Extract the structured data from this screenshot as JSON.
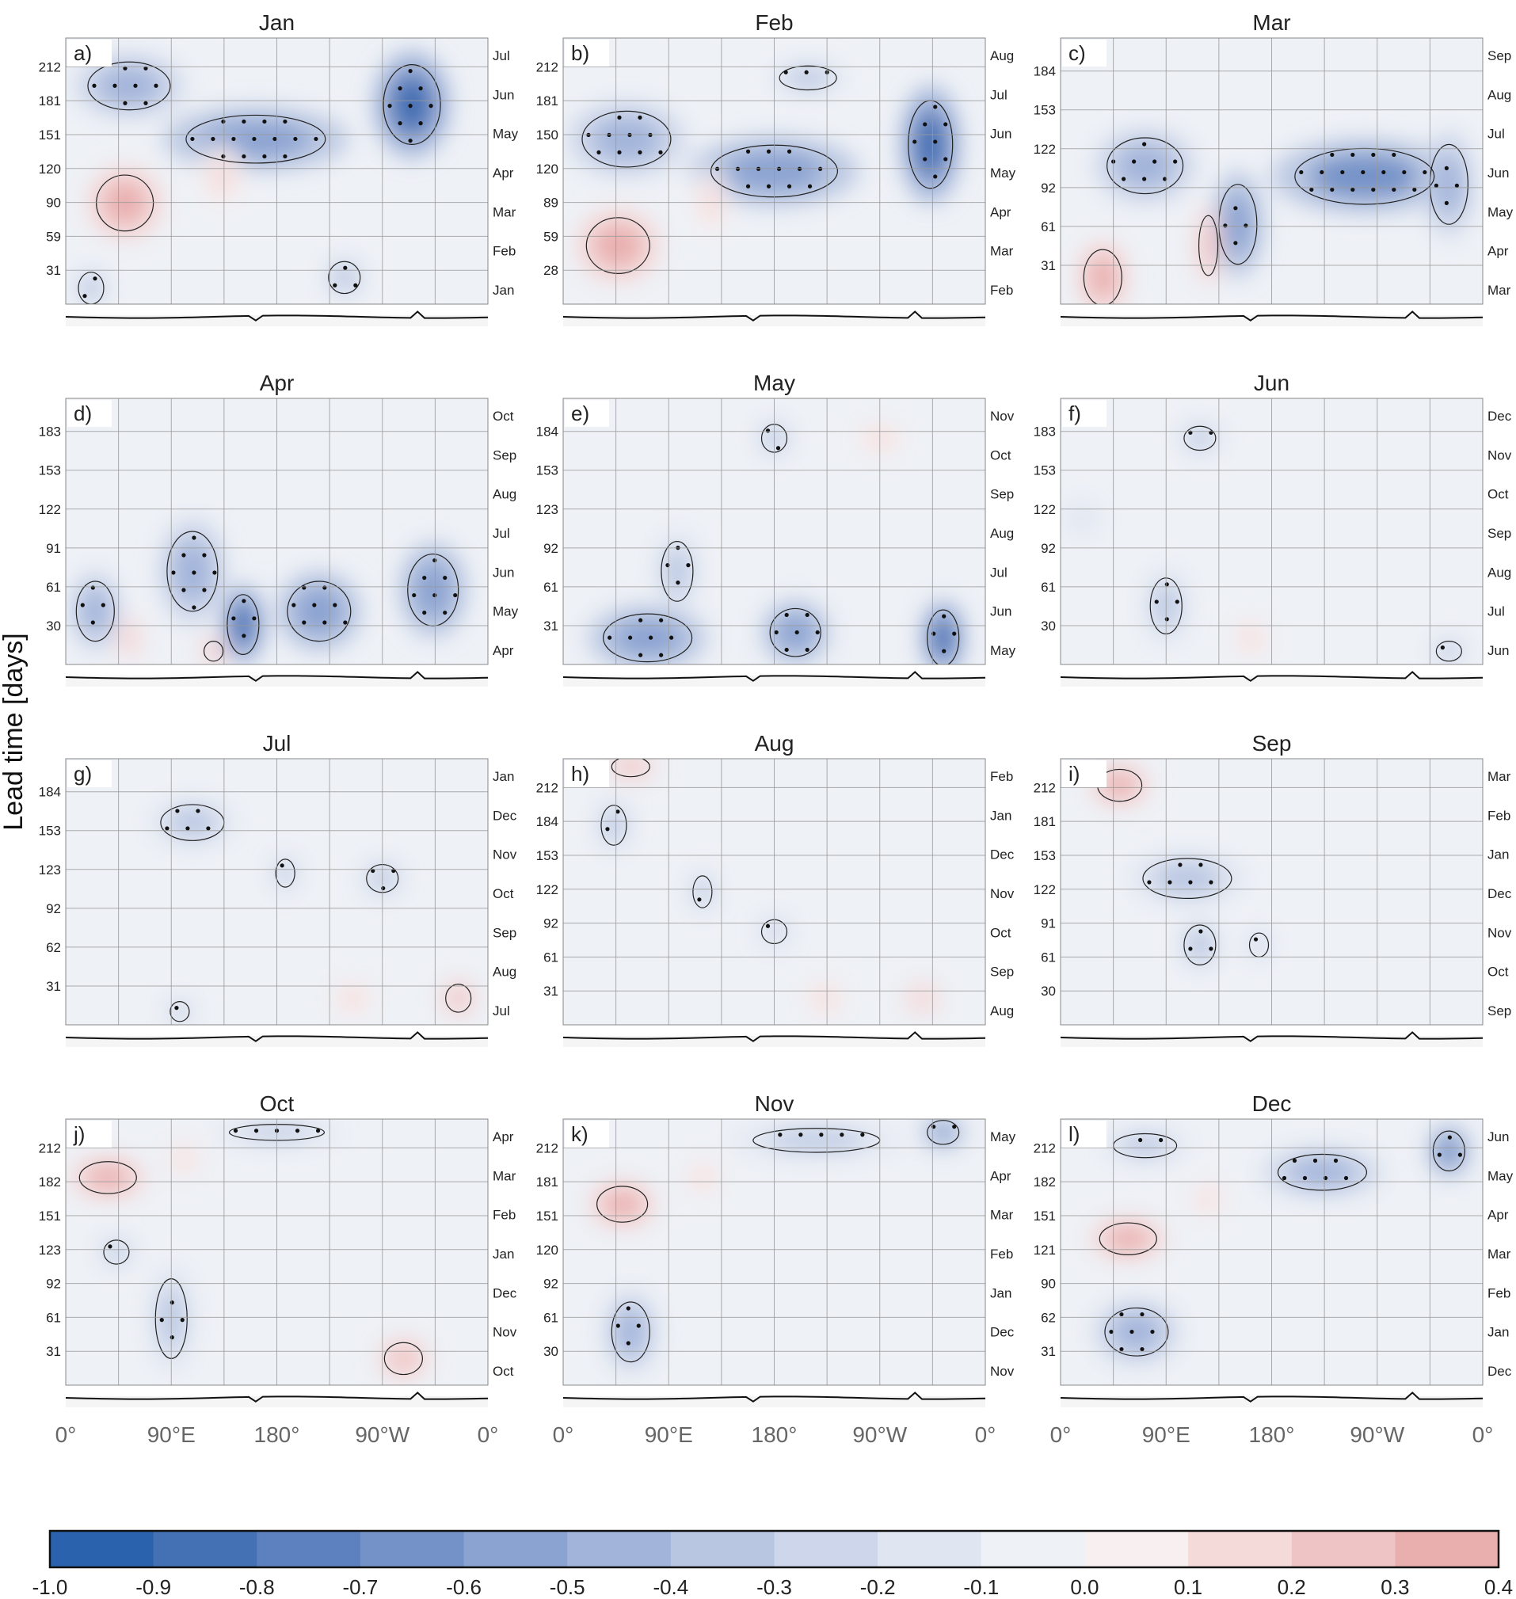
{
  "chart_data": {
    "type": "heatmap",
    "ylabel": "Lead time [days]",
    "x_ticks": [
      "0°",
      "90°E",
      "180°",
      "90°W",
      "0°"
    ],
    "colorbar": {
      "ticks": [
        "-1.0",
        "-0.9",
        "-0.8",
        "-0.7",
        "-0.6",
        "-0.5",
        "-0.4",
        "-0.3",
        "-0.2",
        "-0.1",
        "0.0",
        "0.1",
        "0.2",
        "0.3",
        "0.4"
      ],
      "colors": [
        "#2b62ad",
        "#4470b4",
        "#5d81be",
        "#7492c8",
        "#8ba3d1",
        "#a2b4da",
        "#b8c6e2",
        "#cdd6ea",
        "#e0e6f1",
        "#eef1f6",
        "#f8f0f0",
        "#f5dada",
        "#efc4c4",
        "#e9aeae"
      ]
    },
    "panels": [
      {
        "letter": "a)",
        "title": "Jan",
        "lead_ticks": [
          "212",
          "181",
          "151",
          "120",
          "90",
          "59",
          "31"
        ],
        "month_ticks": [
          "Jul",
          "Jun",
          "May",
          "Apr",
          "Mar",
          "Feb",
          "Jan"
        ],
        "blobs": [
          {
            "x": 0.82,
            "y": 0.75,
            "v": -0.8,
            "sx": 0.09,
            "sy": 0.2
          },
          {
            "x": 0.45,
            "y": 0.62,
            "v": -0.6,
            "sx": 0.22,
            "sy": 0.12
          },
          {
            "x": 0.15,
            "y": 0.82,
            "v": -0.4,
            "sx": 0.13,
            "sy": 0.12
          },
          {
            "x": 0.14,
            "y": 0.38,
            "v": 0.3,
            "sx": 0.09,
            "sy": 0.14
          },
          {
            "x": 0.37,
            "y": 0.48,
            "v": 0.15,
            "sx": 0.05,
            "sy": 0.12
          },
          {
            "x": 0.66,
            "y": 0.1,
            "v": -0.3,
            "sx": 0.05,
            "sy": 0.08
          },
          {
            "x": 0.06,
            "y": 0.06,
            "v": -0.35,
            "sx": 0.04,
            "sy": 0.08
          }
        ]
      },
      {
        "letter": "b)",
        "title": "Feb",
        "lead_ticks": [
          "212",
          "181",
          "150",
          "120",
          "89",
          "59",
          "28"
        ],
        "month_ticks": [
          "Aug",
          "Jul",
          "Jun",
          "May",
          "Apr",
          "Mar",
          "Feb"
        ],
        "blobs": [
          {
            "x": 0.87,
            "y": 0.6,
            "v": -0.8,
            "sx": 0.07,
            "sy": 0.22
          },
          {
            "x": 0.5,
            "y": 0.5,
            "v": -0.6,
            "sx": 0.2,
            "sy": 0.13
          },
          {
            "x": 0.15,
            "y": 0.62,
            "v": -0.4,
            "sx": 0.14,
            "sy": 0.14
          },
          {
            "x": 0.13,
            "y": 0.22,
            "v": 0.3,
            "sx": 0.1,
            "sy": 0.14
          },
          {
            "x": 0.35,
            "y": 0.38,
            "v": 0.15,
            "sx": 0.04,
            "sy": 0.12
          },
          {
            "x": 0.58,
            "y": 0.85,
            "v": -0.3,
            "sx": 0.09,
            "sy": 0.06
          }
        ]
      },
      {
        "letter": "c)",
        "title": "Mar",
        "lead_ticks": [
          "184",
          "153",
          "122",
          "92",
          "61",
          "31"
        ],
        "month_ticks": [
          "Sep",
          "Aug",
          "Jul",
          "Jun",
          "May",
          "Apr",
          "Mar"
        ],
        "blobs": [
          {
            "x": 0.72,
            "y": 0.48,
            "v": -0.7,
            "sx": 0.22,
            "sy": 0.14
          },
          {
            "x": 0.42,
            "y": 0.3,
            "v": -0.6,
            "sx": 0.06,
            "sy": 0.2
          },
          {
            "x": 0.2,
            "y": 0.52,
            "v": -0.45,
            "sx": 0.12,
            "sy": 0.14
          },
          {
            "x": 0.1,
            "y": 0.1,
            "v": 0.3,
            "sx": 0.06,
            "sy": 0.14
          },
          {
            "x": 0.35,
            "y": 0.22,
            "v": 0.25,
            "sx": 0.03,
            "sy": 0.15
          },
          {
            "x": 0.92,
            "y": 0.45,
            "v": -0.5,
            "sx": 0.06,
            "sy": 0.2
          }
        ]
      },
      {
        "letter": "d)",
        "title": "Apr",
        "lead_ticks": [
          "183",
          "153",
          "122",
          "91",
          "61",
          "30"
        ],
        "month_ticks": [
          "Oct",
          "Sep",
          "Aug",
          "Jul",
          "Jun",
          "May",
          "Apr"
        ],
        "blobs": [
          {
            "x": 0.42,
            "y": 0.15,
            "v": -0.8,
            "sx": 0.05,
            "sy": 0.15
          },
          {
            "x": 0.6,
            "y": 0.2,
            "v": -0.55,
            "sx": 0.1,
            "sy": 0.15
          },
          {
            "x": 0.87,
            "y": 0.28,
            "v": -0.6,
            "sx": 0.08,
            "sy": 0.18
          },
          {
            "x": 0.07,
            "y": 0.2,
            "v": -0.5,
            "sx": 0.06,
            "sy": 0.15
          },
          {
            "x": 0.3,
            "y": 0.35,
            "v": -0.45,
            "sx": 0.08,
            "sy": 0.2
          },
          {
            "x": 0.15,
            "y": 0.1,
            "v": 0.2,
            "sx": 0.03,
            "sy": 0.08
          },
          {
            "x": 0.35,
            "y": 0.05,
            "v": 0.25,
            "sx": 0.03,
            "sy": 0.05
          }
        ]
      },
      {
        "letter": "e)",
        "title": "May",
        "lead_ticks": [
          "184",
          "153",
          "123",
          "92",
          "61",
          "31"
        ],
        "month_ticks": [
          "Nov",
          "Oct",
          "Sep",
          "Aug",
          "Jul",
          "Jun",
          "May"
        ],
        "blobs": [
          {
            "x": 0.9,
            "y": 0.1,
            "v": -0.85,
            "sx": 0.05,
            "sy": 0.14
          },
          {
            "x": 0.55,
            "y": 0.12,
            "v": -0.6,
            "sx": 0.08,
            "sy": 0.12
          },
          {
            "x": 0.2,
            "y": 0.1,
            "v": -0.6,
            "sx": 0.14,
            "sy": 0.12
          },
          {
            "x": 0.27,
            "y": 0.35,
            "v": -0.35,
            "sx": 0.05,
            "sy": 0.15
          },
          {
            "x": 0.5,
            "y": 0.85,
            "v": -0.3,
            "sx": 0.04,
            "sy": 0.07
          },
          {
            "x": 0.75,
            "y": 0.85,
            "v": 0.1,
            "sx": 0.06,
            "sy": 0.06
          }
        ]
      },
      {
        "letter": "f)",
        "title": "Jun",
        "lead_ticks": [
          "183",
          "153",
          "122",
          "92",
          "61",
          "30"
        ],
        "month_ticks": [
          "Dec",
          "Nov",
          "Oct",
          "Sep",
          "Aug",
          "Jul",
          "Jun"
        ],
        "blobs": [
          {
            "x": 0.25,
            "y": 0.22,
            "v": -0.35,
            "sx": 0.05,
            "sy": 0.14
          },
          {
            "x": 0.33,
            "y": 0.85,
            "v": -0.3,
            "sx": 0.05,
            "sy": 0.06
          },
          {
            "x": 0.92,
            "y": 0.05,
            "v": -0.3,
            "sx": 0.04,
            "sy": 0.05
          },
          {
            "x": 0.45,
            "y": 0.1,
            "v": 0.15,
            "sx": 0.04,
            "sy": 0.08
          },
          {
            "x": 0.05,
            "y": 0.55,
            "v": -0.2,
            "sx": 0.04,
            "sy": 0.06
          }
        ]
      },
      {
        "letter": "g)",
        "title": "Jul",
        "lead_ticks": [
          "184",
          "153",
          "123",
          "92",
          "62",
          "31"
        ],
        "month_ticks": [
          "Jan",
          "Dec",
          "Nov",
          "Oct",
          "Sep",
          "Aug",
          "Jul"
        ],
        "blobs": [
          {
            "x": 0.3,
            "y": 0.76,
            "v": -0.3,
            "sx": 0.1,
            "sy": 0.09
          },
          {
            "x": 0.52,
            "y": 0.57,
            "v": -0.3,
            "sx": 0.03,
            "sy": 0.07
          },
          {
            "x": 0.75,
            "y": 0.55,
            "v": -0.3,
            "sx": 0.05,
            "sy": 0.07
          },
          {
            "x": 0.68,
            "y": 0.1,
            "v": 0.15,
            "sx": 0.05,
            "sy": 0.07
          },
          {
            "x": 0.93,
            "y": 0.1,
            "v": 0.25,
            "sx": 0.04,
            "sy": 0.07
          },
          {
            "x": 0.27,
            "y": 0.05,
            "v": -0.3,
            "sx": 0.03,
            "sy": 0.05
          }
        ]
      },
      {
        "letter": "h)",
        "title": "Aug",
        "lead_ticks": [
          "212",
          "184",
          "153",
          "122",
          "92",
          "61",
          "31"
        ],
        "month_ticks": [
          "Feb",
          "Jan",
          "Dec",
          "Nov",
          "Oct",
          "Sep",
          "Aug"
        ],
        "blobs": [
          {
            "x": 0.16,
            "y": 0.97,
            "v": 0.25,
            "sx": 0.06,
            "sy": 0.05
          },
          {
            "x": 0.12,
            "y": 0.75,
            "v": -0.3,
            "sx": 0.04,
            "sy": 0.1
          },
          {
            "x": 0.33,
            "y": 0.5,
            "v": -0.3,
            "sx": 0.03,
            "sy": 0.08
          },
          {
            "x": 0.62,
            "y": 0.1,
            "v": 0.15,
            "sx": 0.05,
            "sy": 0.07
          },
          {
            "x": 0.85,
            "y": 0.1,
            "v": 0.2,
            "sx": 0.04,
            "sy": 0.06
          },
          {
            "x": 0.5,
            "y": 0.35,
            "v": -0.25,
            "sx": 0.04,
            "sy": 0.06
          }
        ]
      },
      {
        "letter": "i)",
        "title": "Sep",
        "lead_ticks": [
          "212",
          "181",
          "153",
          "122",
          "91",
          "61",
          "30"
        ],
        "month_ticks": [
          "Mar",
          "Feb",
          "Jan",
          "Dec",
          "Nov",
          "Oct",
          "Sep"
        ],
        "blobs": [
          {
            "x": 0.14,
            "y": 0.9,
            "v": 0.3,
            "sx": 0.07,
            "sy": 0.08
          },
          {
            "x": 0.3,
            "y": 0.55,
            "v": -0.35,
            "sx": 0.14,
            "sy": 0.1
          },
          {
            "x": 0.33,
            "y": 0.3,
            "v": -0.3,
            "sx": 0.05,
            "sy": 0.1
          },
          {
            "x": 0.47,
            "y": 0.3,
            "v": -0.25,
            "sx": 0.03,
            "sy": 0.06
          }
        ]
      },
      {
        "letter": "j)",
        "title": "Oct",
        "lead_ticks": [
          "212",
          "182",
          "151",
          "123",
          "92",
          "61",
          "31"
        ],
        "month_ticks": [
          "Apr",
          "Mar",
          "Feb",
          "Jan",
          "Dec",
          "Nov",
          "Oct"
        ],
        "blobs": [
          {
            "x": 0.1,
            "y": 0.78,
            "v": 0.3,
            "sx": 0.09,
            "sy": 0.08
          },
          {
            "x": 0.28,
            "y": 0.85,
            "v": 0.15,
            "sx": 0.04,
            "sy": 0.07
          },
          {
            "x": 0.25,
            "y": 0.25,
            "v": -0.35,
            "sx": 0.05,
            "sy": 0.2
          },
          {
            "x": 0.12,
            "y": 0.5,
            "v": -0.3,
            "sx": 0.04,
            "sy": 0.06
          },
          {
            "x": 0.8,
            "y": 0.1,
            "v": 0.25,
            "sx": 0.06,
            "sy": 0.08
          },
          {
            "x": 0.5,
            "y": 0.95,
            "v": -0.3,
            "sx": 0.15,
            "sy": 0.04
          }
        ]
      },
      {
        "letter": "k)",
        "title": "Nov",
        "lead_ticks": [
          "212",
          "181",
          "151",
          "120",
          "92",
          "61",
          "30"
        ],
        "month_ticks": [
          "May",
          "Apr",
          "Mar",
          "Feb",
          "Jan",
          "Dec",
          "Nov"
        ],
        "blobs": [
          {
            "x": 0.14,
            "y": 0.68,
            "v": 0.3,
            "sx": 0.08,
            "sy": 0.09
          },
          {
            "x": 0.6,
            "y": 0.92,
            "v": -0.35,
            "sx": 0.2,
            "sy": 0.06
          },
          {
            "x": 0.9,
            "y": 0.95,
            "v": -0.6,
            "sx": 0.05,
            "sy": 0.06
          },
          {
            "x": 0.16,
            "y": 0.2,
            "v": -0.45,
            "sx": 0.06,
            "sy": 0.15
          },
          {
            "x": 0.33,
            "y": 0.78,
            "v": 0.15,
            "sx": 0.04,
            "sy": 0.07
          }
        ]
      },
      {
        "letter": "l)",
        "title": "Dec",
        "lead_ticks": [
          "212",
          "182",
          "151",
          "121",
          "90",
          "62",
          "31"
        ],
        "month_ticks": [
          "Jun",
          "May",
          "Apr",
          "Mar",
          "Feb",
          "Jan",
          "Dec"
        ],
        "blobs": [
          {
            "x": 0.16,
            "y": 0.55,
            "v": 0.3,
            "sx": 0.09,
            "sy": 0.08
          },
          {
            "x": 0.62,
            "y": 0.8,
            "v": -0.45,
            "sx": 0.14,
            "sy": 0.09
          },
          {
            "x": 0.92,
            "y": 0.88,
            "v": -0.7,
            "sx": 0.05,
            "sy": 0.1
          },
          {
            "x": 0.18,
            "y": 0.2,
            "v": -0.5,
            "sx": 0.1,
            "sy": 0.12
          },
          {
            "x": 0.2,
            "y": 0.9,
            "v": -0.3,
            "sx": 0.1,
            "sy": 0.06
          },
          {
            "x": 0.35,
            "y": 0.7,
            "v": 0.15,
            "sx": 0.04,
            "sy": 0.07
          }
        ]
      }
    ]
  }
}
